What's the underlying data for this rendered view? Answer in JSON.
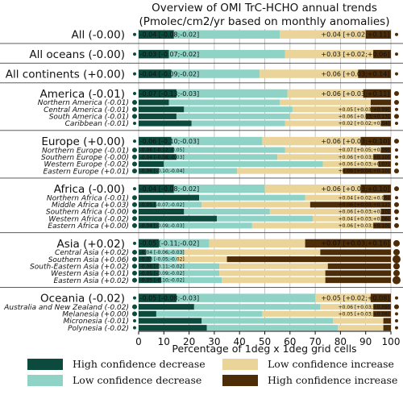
{
  "chart_data": {
    "type": "bar",
    "orientation": "horizontal",
    "stacked": true,
    "title": "Overview of OMI TrC-HCHO annual trends",
    "subtitle": "(Pmolec/cm2/yr based on monthly anomalies)",
    "xlabel": "Percentage of 1deg x 1deg grid cells",
    "xlim": [
      0,
      100
    ],
    "xticks": [
      "0",
      "10",
      "20",
      "30",
      "40",
      "50",
      "60",
      "70",
      "80",
      "90",
      "100"
    ],
    "grid": true,
    "legend_position": "bottom",
    "series": [
      {
        "name": "High confidence decrease",
        "color": "#0b4a3c"
      },
      {
        "name": "Low confidence decrease",
        "color": "#8fd3c6"
      },
      {
        "name": "Low confidence increase",
        "color": "#ead49a"
      },
      {
        "name": "High confidence increase",
        "color": "#4d2c08"
      }
    ],
    "rows": [
      {
        "label": "All (-0.00)",
        "level": "group",
        "values": [
          14,
          42,
          34,
          10
        ],
        "left_annotation": "-0.04 [-0.08;-0.02]",
        "right_annotation": "+0.04 [+0.02;+0.11]"
      },
      {
        "label": "All oceans (-0.00)",
        "level": "group",
        "values": [
          12,
          46,
          35,
          7
        ],
        "left_annotation": "-0.03 [-0.07;-0.02]",
        "right_annotation": "+0.03 [+0.02;+0.06]"
      },
      {
        "label": "All continents (+0.00)",
        "level": "group",
        "values": [
          13,
          35,
          39,
          13
        ],
        "left_annotation": "-0.04 [-0.09;-0.02]",
        "right_annotation": "+0.06 [+0.03;+0.14]"
      },
      {
        "label": "America (-0.01)",
        "level": "group",
        "values": [
          15,
          44,
          30,
          11
        ],
        "left_annotation": "-0.07 [-0.13;-0.03]",
        "right_annotation": "+0.06 [+0.03;+0.11]"
      },
      {
        "label": "Northern America (-0.01)",
        "level": "sub",
        "values": [
          12,
          44,
          36,
          8
        ],
        "left_annotation": "",
        "right_annotation": ""
      },
      {
        "label": "Central America (-0.01)",
        "level": "sub",
        "values": [
          18,
          43,
          31,
          8
        ],
        "left_annotation": "",
        "right_annotation": "+0.05 [+0.03;+0.09]"
      },
      {
        "label": "South America (-0.01)",
        "level": "sub",
        "values": [
          15,
          45,
          30,
          10
        ],
        "left_annotation": "",
        "right_annotation": "+0.06 [+0.03;+0.13]"
      },
      {
        "label": "Caribbean (-0.01)",
        "level": "sub",
        "values": [
          21,
          37,
          38,
          4
        ],
        "left_annotation": "",
        "right_annotation": "+0.02 [+0.02;+0.04]"
      },
      {
        "label": "Europe (+0.00)",
        "level": "group",
        "values": [
          13,
          36,
          39,
          12
        ],
        "left_annotation": "-0.06 [-0.10;-0.03]",
        "right_annotation": "+0.06 [+0.03;+0.10]"
      },
      {
        "label": "Northern Europe (-0.01)",
        "level": "sub",
        "values": [
          14,
          44,
          38,
          4
        ],
        "left_annotation": "-0.06 [-0.12;-0.05]",
        "right_annotation": "+0.07 [+0.05;+0.09]"
      },
      {
        "label": "Southern Europe (-0.00)",
        "level": "sub",
        "values": [
          15,
          40,
          38,
          7
        ],
        "left_annotation": "-0.04 [-0.08;-0.03]",
        "right_annotation": "+0.06 [+0.03;+0.10]"
      },
      {
        "label": "Western Europe (-0.02)",
        "level": "sub",
        "values": [
          10,
          63,
          22,
          5
        ],
        "left_annotation": "",
        "right_annotation": "+0.06 [+0.03;+0.07]"
      },
      {
        "label": "Eastern Europe (+0.01)",
        "level": "sub",
        "values": [
          8,
          31,
          42,
          19
        ],
        "left_annotation": "-0.06 [-0.10;-0.04]",
        "right_annotation": "+0.06 [+0.04;+0.10]"
      },
      {
        "label": "Africa (-0.00)",
        "level": "group",
        "values": [
          14,
          36,
          38,
          12
        ],
        "left_annotation": "-0.04 [-0.08;-0.02]",
        "right_annotation": "+0.06 [+0.03;+0.10]"
      },
      {
        "label": "Northern Africa (-0.01)",
        "level": "sub",
        "values": [
          24,
          42,
          31,
          3
        ],
        "left_annotation": "",
        "right_annotation": "+0.04 [+0.02;+0.05]"
      },
      {
        "label": "Middle Africa (+0.03)",
        "level": "sub",
        "values": [
          7,
          18,
          43,
          32
        ],
        "left_annotation": "-0.05 [-0.07;-0.02]",
        "right_annotation": "+0.06 [+0.03;+0.12]"
      },
      {
        "label": "Southern Africa (-0.00)",
        "level": "sub",
        "values": [
          18,
          34,
          44,
          4
        ],
        "left_annotation": "",
        "right_annotation": "+0.06 [+0.03;+0.10]"
      },
      {
        "label": "Western Africa (-0.02)",
        "level": "sub",
        "values": [
          31,
          38,
          27,
          4
        ],
        "left_annotation": "",
        "right_annotation": "+0.04 [+0.03;+0.06]"
      },
      {
        "label": "Eastern Africa (+0.00)",
        "level": "sub",
        "values": [
          8,
          37,
          48,
          7
        ],
        "left_annotation": "-0.04 [-0.09;-0.03]",
        "right_annotation": "+0.06 [+0.03;+0.10]"
      },
      {
        "label": "Asia (+0.02)",
        "level": "group",
        "values": [
          8,
          20,
          38,
          34
        ],
        "left_annotation": "-0.05 [-0.11;-0.02]",
        "right_annotation": "+0.07 [+0.03;+0.16]"
      },
      {
        "label": "Central Asia (+0.02)",
        "level": "sub",
        "values": [
          3,
          15,
          54,
          28
        ],
        "left_annotation": "-0.04 [-0.06;-0.03]",
        "right_annotation": ""
      },
      {
        "label": "Southern Asia (+0.06)",
        "level": "sub",
        "values": [
          5,
          10,
          20,
          65
        ],
        "left_annotation": "-0.03 [-0.05;-0.02]",
        "right_annotation": ""
      },
      {
        "label": "South-Eastern Asia (+0.02)",
        "level": "sub",
        "values": [
          8,
          24,
          43,
          25
        ],
        "left_annotation": "-0.06 [-0.11;-0.02]",
        "right_annotation": ""
      },
      {
        "label": "Western Asia (+0.01)",
        "level": "sub",
        "values": [
          8,
          24,
          42,
          26
        ],
        "left_annotation": "-0.05 [-0.09;-0.02]",
        "right_annotation": ""
      },
      {
        "label": "Eastern Asia (+0.02)",
        "level": "sub",
        "values": [
          9,
          24,
          41,
          26
        ],
        "left_annotation": "-0.05 [-0.10;-0.02]",
        "right_annotation": ""
      },
      {
        "label": "Oceania (-0.02)",
        "level": "group",
        "values": [
          15,
          55,
          22,
          8
        ],
        "left_annotation": "-0.05 [-0.08;-0.03]",
        "right_annotation": "+0.05 [+0.02;+0.08]"
      },
      {
        "label": "Australia and New Zealand (-0.02)",
        "level": "sub",
        "values": [
          22,
          50,
          21,
          7
        ],
        "left_annotation": "",
        "right_annotation": "+0.06 [+0.03;+0.09]"
      },
      {
        "label": "Melanesia (+0.00)",
        "level": "sub",
        "values": [
          7,
          42,
          44,
          7
        ],
        "left_annotation": "",
        "right_annotation": "+0.05 [+0.03;+0.08]"
      },
      {
        "label": "Micronesia (-0.01)",
        "level": "sub",
        "values": [
          25,
          52,
          20,
          3
        ],
        "left_annotation": "",
        "right_annotation": ""
      },
      {
        "label": "Polynesia (-0.02)",
        "level": "sub",
        "values": [
          27,
          52,
          18,
          3
        ],
        "left_annotation": "",
        "right_annotation": ""
      }
    ],
    "left_dot_sizes": [
      2,
      2,
      2,
      2,
      3,
      3,
      3,
      2,
      2,
      3,
      3,
      3,
      3,
      2,
      3,
      3,
      3,
      3,
      3,
      2,
      3,
      3,
      3,
      3,
      3,
      2,
      3,
      3,
      2,
      2
    ],
    "right_dot_sizes": [
      2,
      2,
      2,
      3,
      3,
      2,
      3,
      2,
      3,
      2,
      2,
      2,
      3,
      3,
      2,
      3,
      3,
      2,
      3,
      4,
      4,
      5,
      4,
      4,
      5,
      2,
      3,
      2,
      2,
      2
    ]
  }
}
